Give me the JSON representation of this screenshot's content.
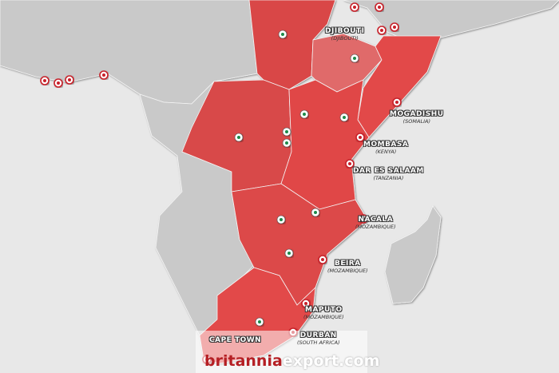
{
  "colors": {
    "sea": "#e8e8e8",
    "land": "#c9c9c9",
    "highlight": "#e24a4a",
    "highlight_light": "#e87070",
    "port_marker": "#c8202a",
    "capital_marker": "#1b8a4a"
  },
  "ports": [
    {
      "city": "DJIBOUTI",
      "country": "(DJIBOUTI)"
    },
    {
      "city": "MOGADISHU",
      "country": "(SOMALIA)"
    },
    {
      "city": "MOMBASA",
      "country": "(KENYA)"
    },
    {
      "city": "DAR ES SALAAM",
      "country": "(TANZANIA)"
    },
    {
      "city": "NACALA",
      "country": "(MOZAMBIQUE)"
    },
    {
      "city": "BEIRA",
      "country": "(MOZAMBIQUE)"
    },
    {
      "city": "MAPUTO",
      "country": "(MOZAMBIQUE)"
    },
    {
      "city": "DURBAN",
      "country": "(SOUTH AFRICA)"
    },
    {
      "city": "CAPE TOWN",
      "country": ""
    }
  ],
  "watermark": {
    "brand": "britannia",
    "suffix": "export.com"
  }
}
